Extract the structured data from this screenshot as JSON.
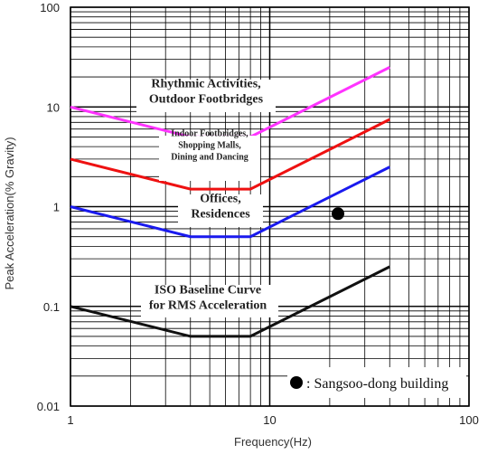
{
  "chart_data": {
    "type": "line",
    "xlabel": "Frequency(Hz)",
    "ylabel": "Peak Acceleration(% Gravity)",
    "xscale": "log",
    "yscale": "log",
    "xlim": [
      1,
      100
    ],
    "ylim": [
      0.01,
      100
    ],
    "xticks": [
      "1",
      "10",
      "100"
    ],
    "yticks": [
      "0.01",
      "0.1",
      "1",
      "10",
      "100"
    ],
    "grid": true,
    "series": [
      {
        "color": "#ff33ff",
        "x": [
          1,
          4,
          8,
          40
        ],
        "y": [
          10,
          5,
          5,
          25
        ]
      },
      {
        "color": "#ee1111",
        "x": [
          1,
          4,
          8,
          40
        ],
        "y": [
          3,
          1.5,
          1.5,
          7.5
        ]
      },
      {
        "color": "#1a1aee",
        "x": [
          1,
          4,
          8,
          40
        ],
        "y": [
          1,
          0.5,
          0.5,
          2.5
        ]
      },
      {
        "color": "#111111",
        "x": [
          1,
          4,
          8,
          40
        ],
        "y": [
          0.1,
          0.05,
          0.05,
          0.25
        ]
      }
    ],
    "annotations": [
      {
        "lines": [
          "Rhythmic Activities,",
          "Outdoor Footbridges"
        ],
        "size": "large"
      },
      {
        "lines": [
          "Indoor Footbridges,",
          "Shopping Malls,",
          "Dining and Dancing"
        ],
        "size": "small"
      },
      {
        "lines": [
          "Offices,",
          "Residences"
        ],
        "size": "large"
      },
      {
        "lines": [
          "ISO Baseline Curve",
          "for RMS Acceleration"
        ],
        "size": "large"
      }
    ],
    "point": {
      "x": 22,
      "y": 0.85,
      "color": "#000000"
    },
    "legend": {
      "text": ": Sangsoo-dong building",
      "placement": "bottom-right"
    }
  }
}
